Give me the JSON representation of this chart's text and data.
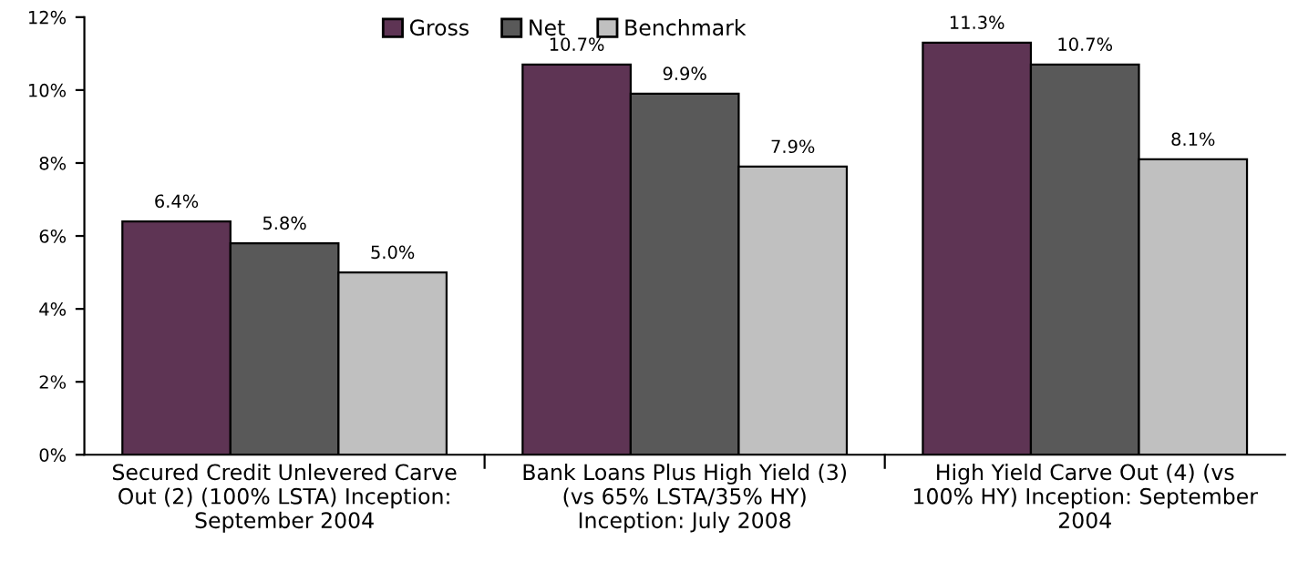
{
  "chart_data": {
    "type": "bar",
    "categories": [
      "Secured Credit Unlevered Carve Out (2) (100% LSTA) Inception: September 2004",
      "Bank Loans Plus High Yield (3) (vs 65% LSTA/35% HY) Inception: July 2008",
      "High Yield Carve Out (4) (vs 100% HY) Inception: September 2004"
    ],
    "series": [
      {
        "name": "Gross",
        "color": "#5e3454",
        "values": [
          6.4,
          10.7,
          11.3
        ],
        "value_labels": [
          "6.4%",
          "10.7%",
          "11.3%"
        ]
      },
      {
        "name": "Net",
        "color": "#595959",
        "values": [
          5.8,
          9.9,
          10.7
        ],
        "value_labels": [
          "5.8%",
          "9.9%",
          "10.7%"
        ]
      },
      {
        "name": "Benchmark",
        "color": "#c0c0c0",
        "values": [
          5.0,
          7.9,
          8.1
        ],
        "value_labels": [
          "5.0%",
          "7.9%",
          "8.1%"
        ]
      }
    ],
    "ylim": [
      0,
      12
    ],
    "yticks": [
      {
        "value": 0,
        "label": "0%"
      },
      {
        "value": 2,
        "label": "2%"
      },
      {
        "value": 4,
        "label": "4%"
      },
      {
        "value": 6,
        "label": "6%"
      },
      {
        "value": 8,
        "label": "8%"
      },
      {
        "value": 10,
        "label": "10%"
      },
      {
        "value": 12,
        "label": "12%"
      }
    ],
    "grid": false,
    "legend": "top"
  }
}
